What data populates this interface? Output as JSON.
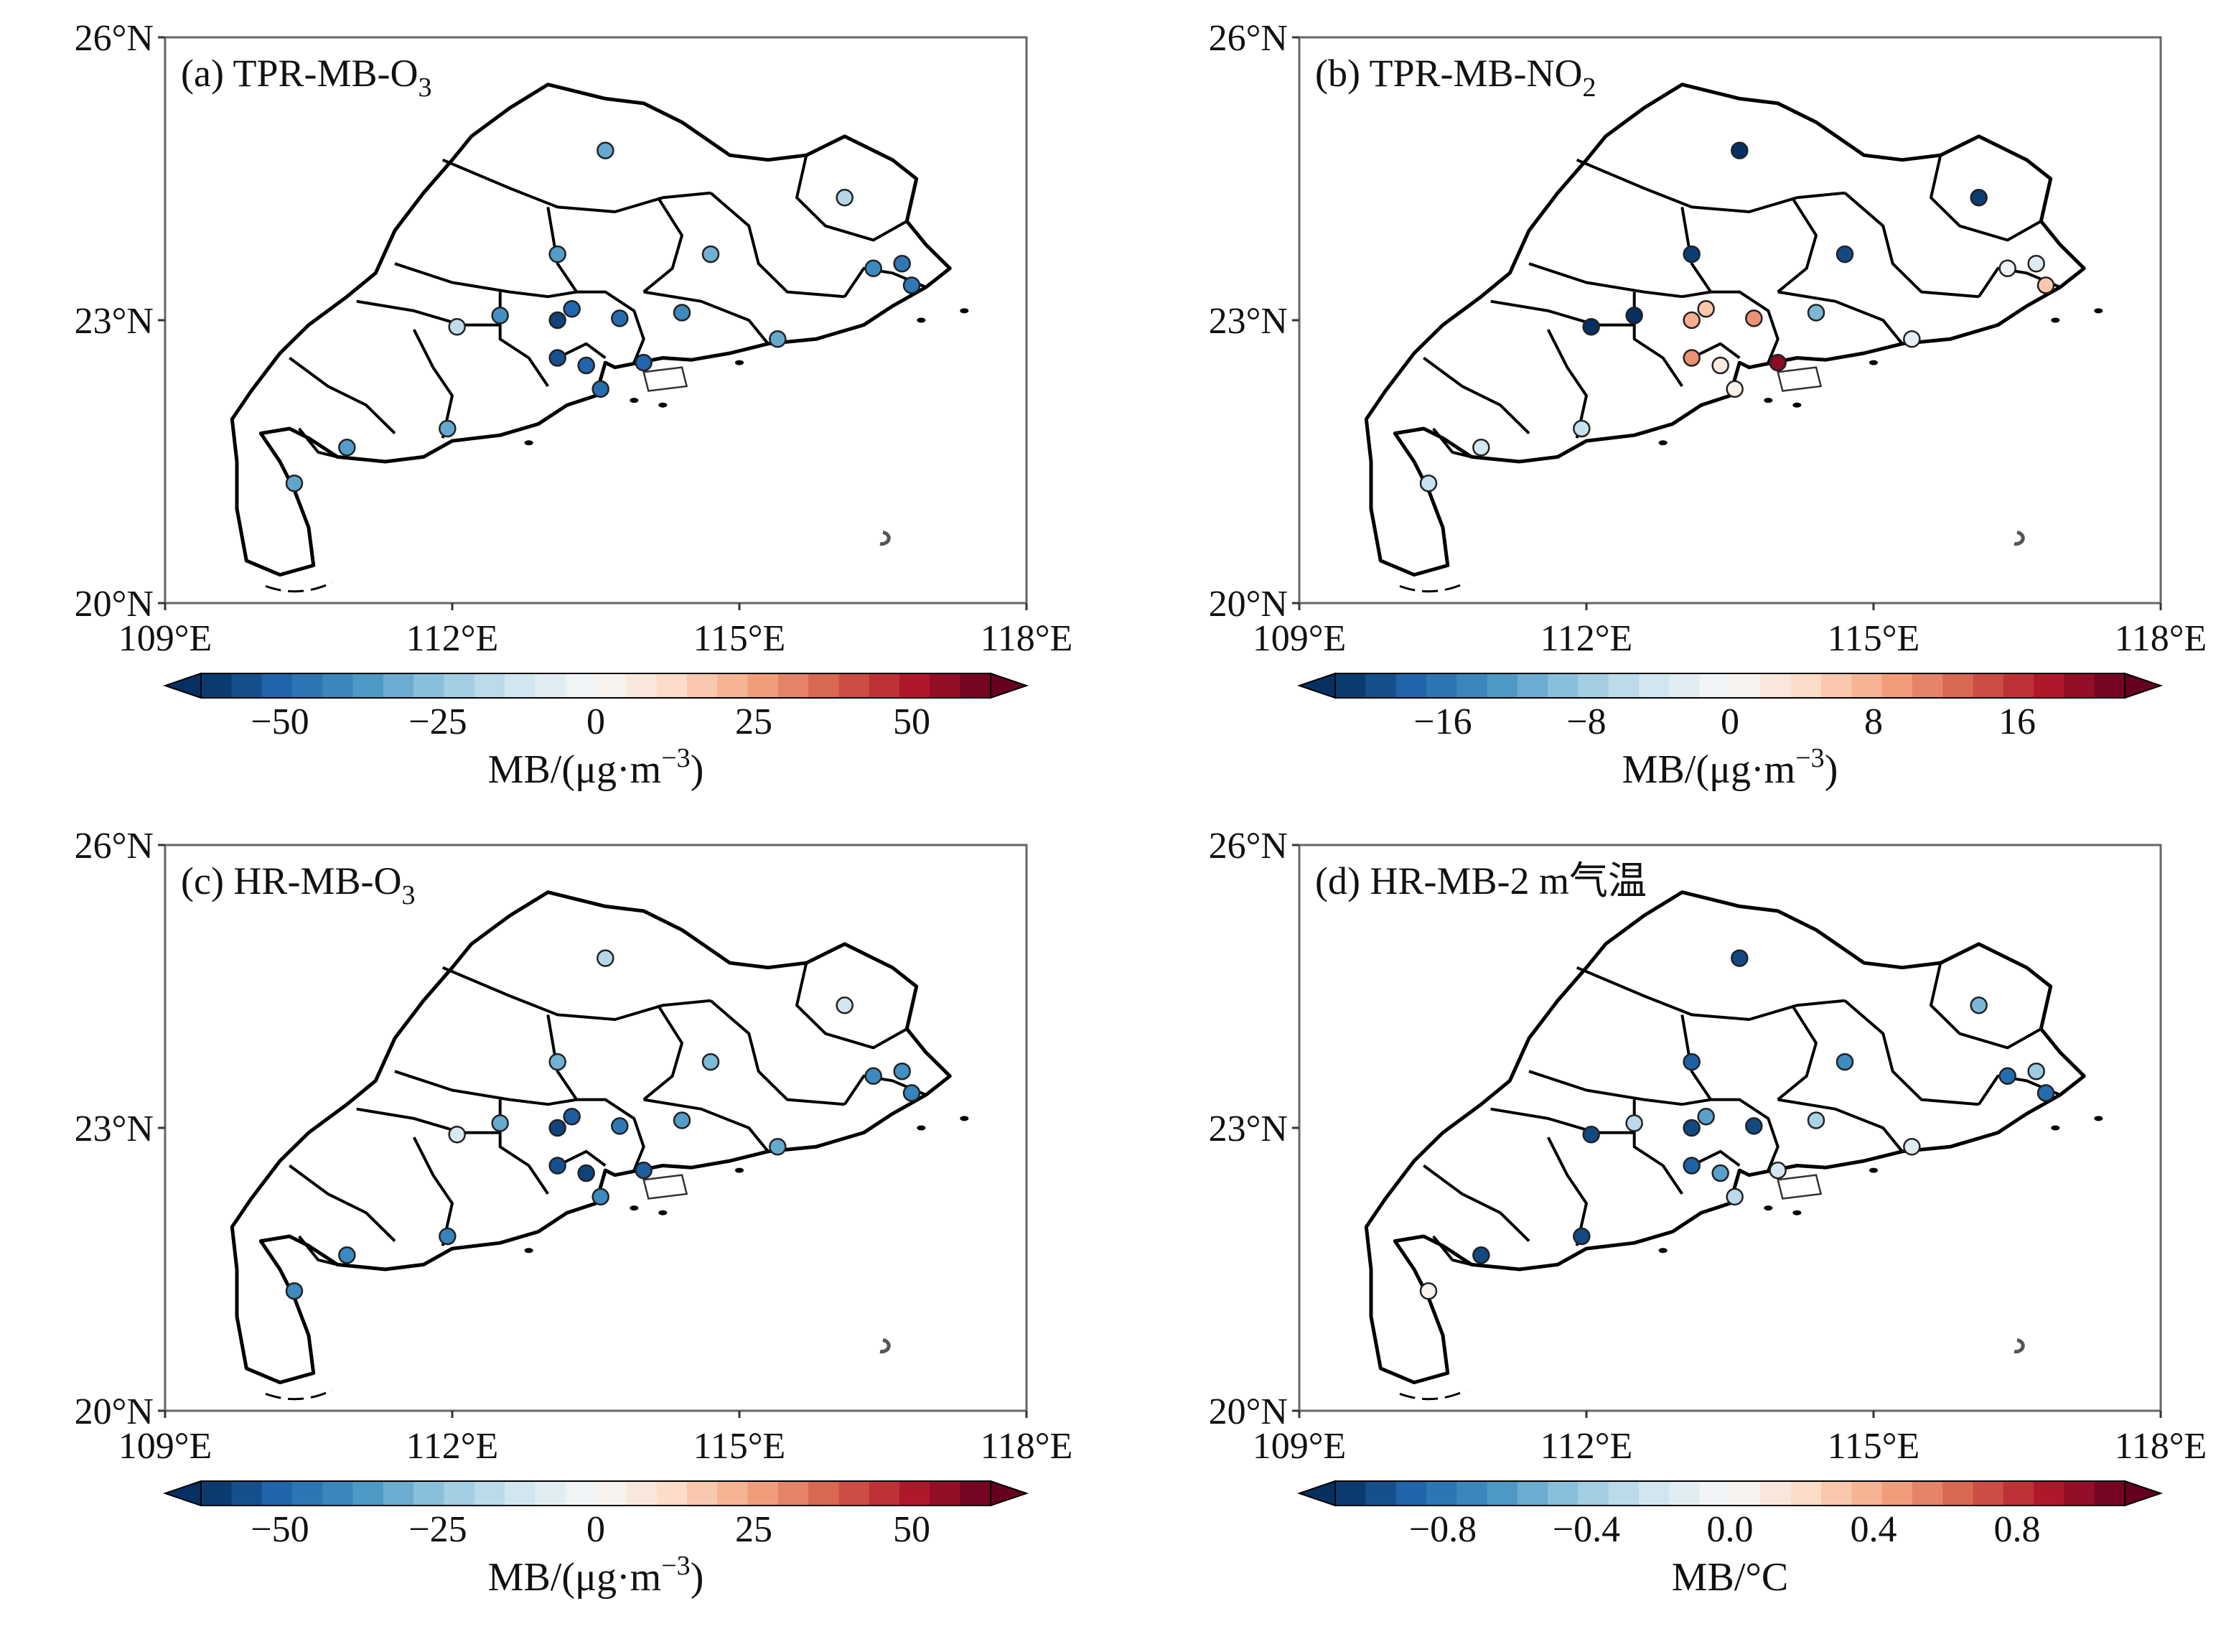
{
  "figure": {
    "panels": [
      {
        "id": "a",
        "title": "(a) TPR-MB-O",
        "title_sub": "3",
        "title_suffix": "",
        "lat_ticks": [
          "26°N",
          "23°N",
          "20°N"
        ],
        "lon_ticks": [
          "109°E",
          "112°E",
          "115°E",
          "118°E"
        ],
        "colorbar": {
          "ticks": [
            "−50",
            "−25",
            "0",
            "25",
            "50"
          ],
          "tick_values": [
            -50,
            -25,
            0,
            25,
            50
          ],
          "range": [
            -62.5,
            62.5
          ],
          "label_main": "MB/(μg·m",
          "label_sup": "−3",
          "label_end": ")",
          "colormap": "RdBu_r"
        },
        "stations": [
          {
            "lon": 113.6,
            "lat": 24.8,
            "value": -32
          },
          {
            "lon": 116.1,
            "lat": 24.3,
            "value": -18
          },
          {
            "lon": 113.1,
            "lat": 23.7,
            "value": -35
          },
          {
            "lon": 114.7,
            "lat": 23.7,
            "value": -30
          },
          {
            "lon": 116.4,
            "lat": 23.55,
            "value": -40
          },
          {
            "lon": 116.7,
            "lat": 23.6,
            "value": -45
          },
          {
            "lon": 116.8,
            "lat": 23.37,
            "value": -45
          },
          {
            "lon": 112.5,
            "lat": 23.05,
            "value": -38
          },
          {
            "lon": 112.05,
            "lat": 22.93,
            "value": -16
          },
          {
            "lon": 113.1,
            "lat": 23.0,
            "value": -58
          },
          {
            "lon": 113.25,
            "lat": 23.12,
            "value": -50
          },
          {
            "lon": 113.75,
            "lat": 23.02,
            "value": -48
          },
          {
            "lon": 114.4,
            "lat": 23.08,
            "value": -40
          },
          {
            "lon": 113.1,
            "lat": 22.6,
            "value": -55
          },
          {
            "lon": 113.4,
            "lat": 22.52,
            "value": -50
          },
          {
            "lon": 114.0,
            "lat": 22.55,
            "value": -50
          },
          {
            "lon": 115.4,
            "lat": 22.8,
            "value": -32
          },
          {
            "lon": 113.55,
            "lat": 22.27,
            "value": -48
          },
          {
            "lon": 111.95,
            "lat": 21.85,
            "value": -32
          },
          {
            "lon": 110.9,
            "lat": 21.65,
            "value": -35
          },
          {
            "lon": 110.35,
            "lat": 21.27,
            "value": -33
          }
        ]
      },
      {
        "id": "b",
        "title": "(b) TPR-MB-NO",
        "title_sub": "2",
        "title_suffix": "",
        "lat_ticks": [
          "26°N",
          "23°N",
          "20°N"
        ],
        "lon_ticks": [
          "109°E",
          "112°E",
          "115°E",
          "118°E"
        ],
        "colorbar": {
          "ticks": [
            "−16",
            "−8",
            "0",
            "8",
            "16"
          ],
          "tick_values": [
            -16,
            -8,
            0,
            8,
            16
          ],
          "range": [
            -22,
            22
          ],
          "label_main": "MB/(μg·m",
          "label_sup": "−3",
          "label_end": ")",
          "colormap": "RdBu_r"
        },
        "stations": [
          {
            "lon": 113.6,
            "lat": 24.8,
            "value": -22
          },
          {
            "lon": 116.1,
            "lat": 24.3,
            "value": -21
          },
          {
            "lon": 113.1,
            "lat": 23.7,
            "value": -21
          },
          {
            "lon": 114.7,
            "lat": 23.7,
            "value": -20
          },
          {
            "lon": 116.4,
            "lat": 23.55,
            "value": -1
          },
          {
            "lon": 116.7,
            "lat": 23.6,
            "value": -3
          },
          {
            "lon": 116.8,
            "lat": 23.37,
            "value": 6
          },
          {
            "lon": 112.5,
            "lat": 23.05,
            "value": -22
          },
          {
            "lon": 112.05,
            "lat": 22.93,
            "value": -22
          },
          {
            "lon": 113.1,
            "lat": 23.0,
            "value": 8
          },
          {
            "lon": 113.25,
            "lat": 23.12,
            "value": 6
          },
          {
            "lon": 113.75,
            "lat": 23.02,
            "value": 10
          },
          {
            "lon": 114.4,
            "lat": 23.08,
            "value": -10
          },
          {
            "lon": 113.1,
            "lat": 22.6,
            "value": 10
          },
          {
            "lon": 113.4,
            "lat": 22.52,
            "value": 2
          },
          {
            "lon": 114.0,
            "lat": 22.55,
            "value": 20
          },
          {
            "lon": 115.4,
            "lat": 22.8,
            "value": -2
          },
          {
            "lon": 113.55,
            "lat": 22.27,
            "value": 1
          },
          {
            "lon": 111.95,
            "lat": 21.85,
            "value": -5
          },
          {
            "lon": 110.9,
            "lat": 21.65,
            "value": -4
          },
          {
            "lon": 110.35,
            "lat": 21.27,
            "value": -5
          }
        ]
      },
      {
        "id": "c",
        "title": "(c) HR-MB-O",
        "title_sub": "3",
        "title_suffix": "",
        "lat_ticks": [
          "26°N",
          "23°N",
          "20°N"
        ],
        "lon_ticks": [
          "109°E",
          "112°E",
          "115°E",
          "118°E"
        ],
        "colorbar": {
          "ticks": [
            "−50",
            "−25",
            "0",
            "25",
            "50"
          ],
          "tick_values": [
            -50,
            -25,
            0,
            25,
            50
          ],
          "range": [
            -62.5,
            62.5
          ],
          "label_main": "MB/(μg·m",
          "label_sup": "−3",
          "label_end": ")",
          "colormap": "RdBu_r"
        },
        "stations": [
          {
            "lon": 113.6,
            "lat": 24.8,
            "value": -18
          },
          {
            "lon": 116.1,
            "lat": 24.3,
            "value": -12
          },
          {
            "lon": 113.1,
            "lat": 23.7,
            "value": -30
          },
          {
            "lon": 114.7,
            "lat": 23.7,
            "value": -28
          },
          {
            "lon": 116.4,
            "lat": 23.55,
            "value": -40
          },
          {
            "lon": 116.7,
            "lat": 23.6,
            "value": -38
          },
          {
            "lon": 116.8,
            "lat": 23.37,
            "value": -42
          },
          {
            "lon": 112.5,
            "lat": 23.05,
            "value": -32
          },
          {
            "lon": 112.05,
            "lat": 22.93,
            "value": -10
          },
          {
            "lon": 113.1,
            "lat": 23.0,
            "value": -58
          },
          {
            "lon": 113.25,
            "lat": 23.12,
            "value": -52
          },
          {
            "lon": 113.75,
            "lat": 23.02,
            "value": -45
          },
          {
            "lon": 114.4,
            "lat": 23.08,
            "value": -35
          },
          {
            "lon": 113.1,
            "lat": 22.6,
            "value": -55
          },
          {
            "lon": 113.4,
            "lat": 22.52,
            "value": -58
          },
          {
            "lon": 114.0,
            "lat": 22.55,
            "value": -52
          },
          {
            "lon": 115.4,
            "lat": 22.8,
            "value": -32
          },
          {
            "lon": 113.55,
            "lat": 22.27,
            "value": -40
          },
          {
            "lon": 111.95,
            "lat": 21.85,
            "value": -42
          },
          {
            "lon": 110.9,
            "lat": 21.65,
            "value": -40
          },
          {
            "lon": 110.35,
            "lat": 21.27,
            "value": -40
          }
        ]
      },
      {
        "id": "d",
        "title": "(d) HR-MB-2 m",
        "title_sub": "",
        "title_suffix": "气温",
        "lat_ticks": [
          "26°N",
          "23°N",
          "20°N"
        ],
        "lon_ticks": [
          "109°E",
          "112°E",
          "115°E",
          "118°E"
        ],
        "colorbar": {
          "ticks": [
            "−0.8",
            "−0.4",
            "0.0",
            "0.4",
            "0.8"
          ],
          "tick_values": [
            -0.8,
            -0.4,
            0.0,
            0.4,
            0.8
          ],
          "range": [
            -1.1,
            1.1
          ],
          "label_main": "MB/°C",
          "label_sup": "",
          "label_end": "",
          "colormap": "RdBu_r"
        },
        "stations": [
          {
            "lon": 113.6,
            "lat": 24.8,
            "value": -1.0
          },
          {
            "lon": 116.1,
            "lat": 24.3,
            "value": -0.5
          },
          {
            "lon": 113.1,
            "lat": 23.7,
            "value": -0.9
          },
          {
            "lon": 114.7,
            "lat": 23.7,
            "value": -0.7
          },
          {
            "lon": 116.4,
            "lat": 23.55,
            "value": -0.85
          },
          {
            "lon": 116.7,
            "lat": 23.6,
            "value": -0.4
          },
          {
            "lon": 116.8,
            "lat": 23.37,
            "value": -0.85
          },
          {
            "lon": 112.5,
            "lat": 23.05,
            "value": -0.3
          },
          {
            "lon": 112.05,
            "lat": 22.93,
            "value": -1.0
          },
          {
            "lon": 113.1,
            "lat": 23.0,
            "value": -1.0
          },
          {
            "lon": 113.25,
            "lat": 23.12,
            "value": -0.6
          },
          {
            "lon": 113.75,
            "lat": 23.02,
            "value": -1.0
          },
          {
            "lon": 114.4,
            "lat": 23.08,
            "value": -0.35
          },
          {
            "lon": 113.1,
            "lat": 22.6,
            "value": -0.9
          },
          {
            "lon": 113.4,
            "lat": 22.52,
            "value": -0.6
          },
          {
            "lon": 114.0,
            "lat": 22.55,
            "value": -0.2
          },
          {
            "lon": 115.4,
            "lat": 22.8,
            "value": -0.15
          },
          {
            "lon": 113.55,
            "lat": 22.27,
            "value": -0.3
          },
          {
            "lon": 111.95,
            "lat": 21.85,
            "value": -1.0
          },
          {
            "lon": 110.9,
            "lat": 21.65,
            "value": -1.0
          },
          {
            "lon": 110.35,
            "lat": 21.27,
            "value": 0.05
          }
        ]
      }
    ],
    "map_extent": {
      "lon": [
        109,
        118
      ],
      "lat": [
        20,
        26
      ]
    }
  }
}
